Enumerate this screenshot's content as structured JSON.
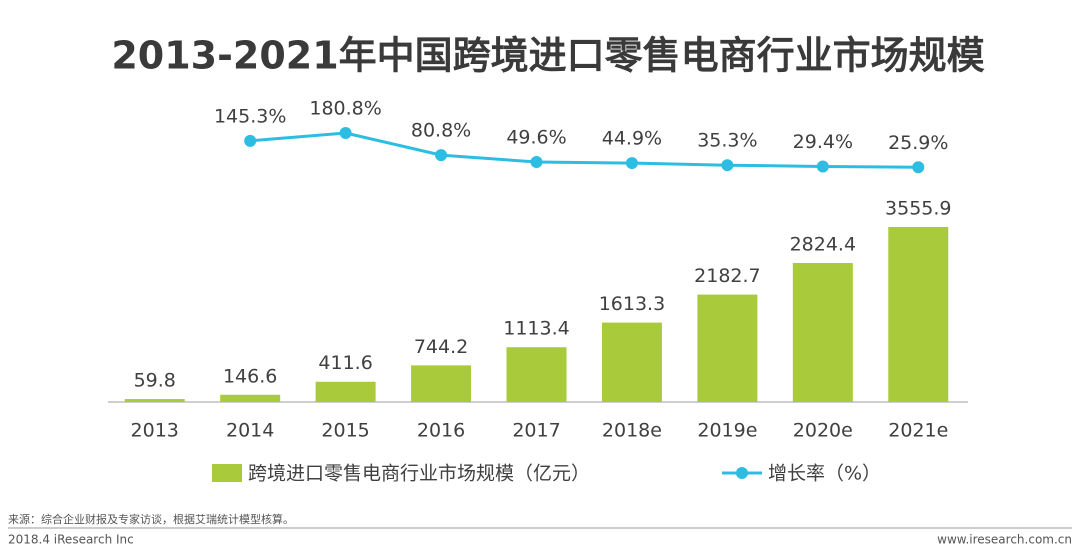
{
  "chart_data": {
    "type": "bar",
    "title": "2013-2021年中国跨境进口零售电商行业市场规模",
    "categories": [
      "2013",
      "2014",
      "2015",
      "2016",
      "2017",
      "2018e",
      "2019e",
      "2020e",
      "2021e"
    ],
    "series": [
      {
        "name": "跨境进口零售电商行业市场规模（亿元）",
        "type": "bar",
        "color": "#a9cb3b",
        "values": [
          59.8,
          146.6,
          411.6,
          744.2,
          1113.4,
          1613.3,
          2182.7,
          2824.4,
          3555.9
        ]
      },
      {
        "name": "增长率（%）",
        "type": "line",
        "axis": "y2",
        "color": "#2dbde2",
        "values": [
          null,
          145.3,
          180.8,
          80.8,
          49.6,
          44.9,
          35.3,
          29.4,
          25.9
        ],
        "value_labels": [
          null,
          "145.3%",
          "180.8%",
          "80.8%",
          "49.6%",
          "44.9%",
          "35.3%",
          "29.4%",
          "25.9%"
        ]
      }
    ]
  },
  "source": "来源：综合企业财报及专家访谈，根据艾瑞统计模型核算。",
  "footer": {
    "left": "2018.4 iResearch Inc",
    "right": "www.iresearch.com.cn"
  }
}
